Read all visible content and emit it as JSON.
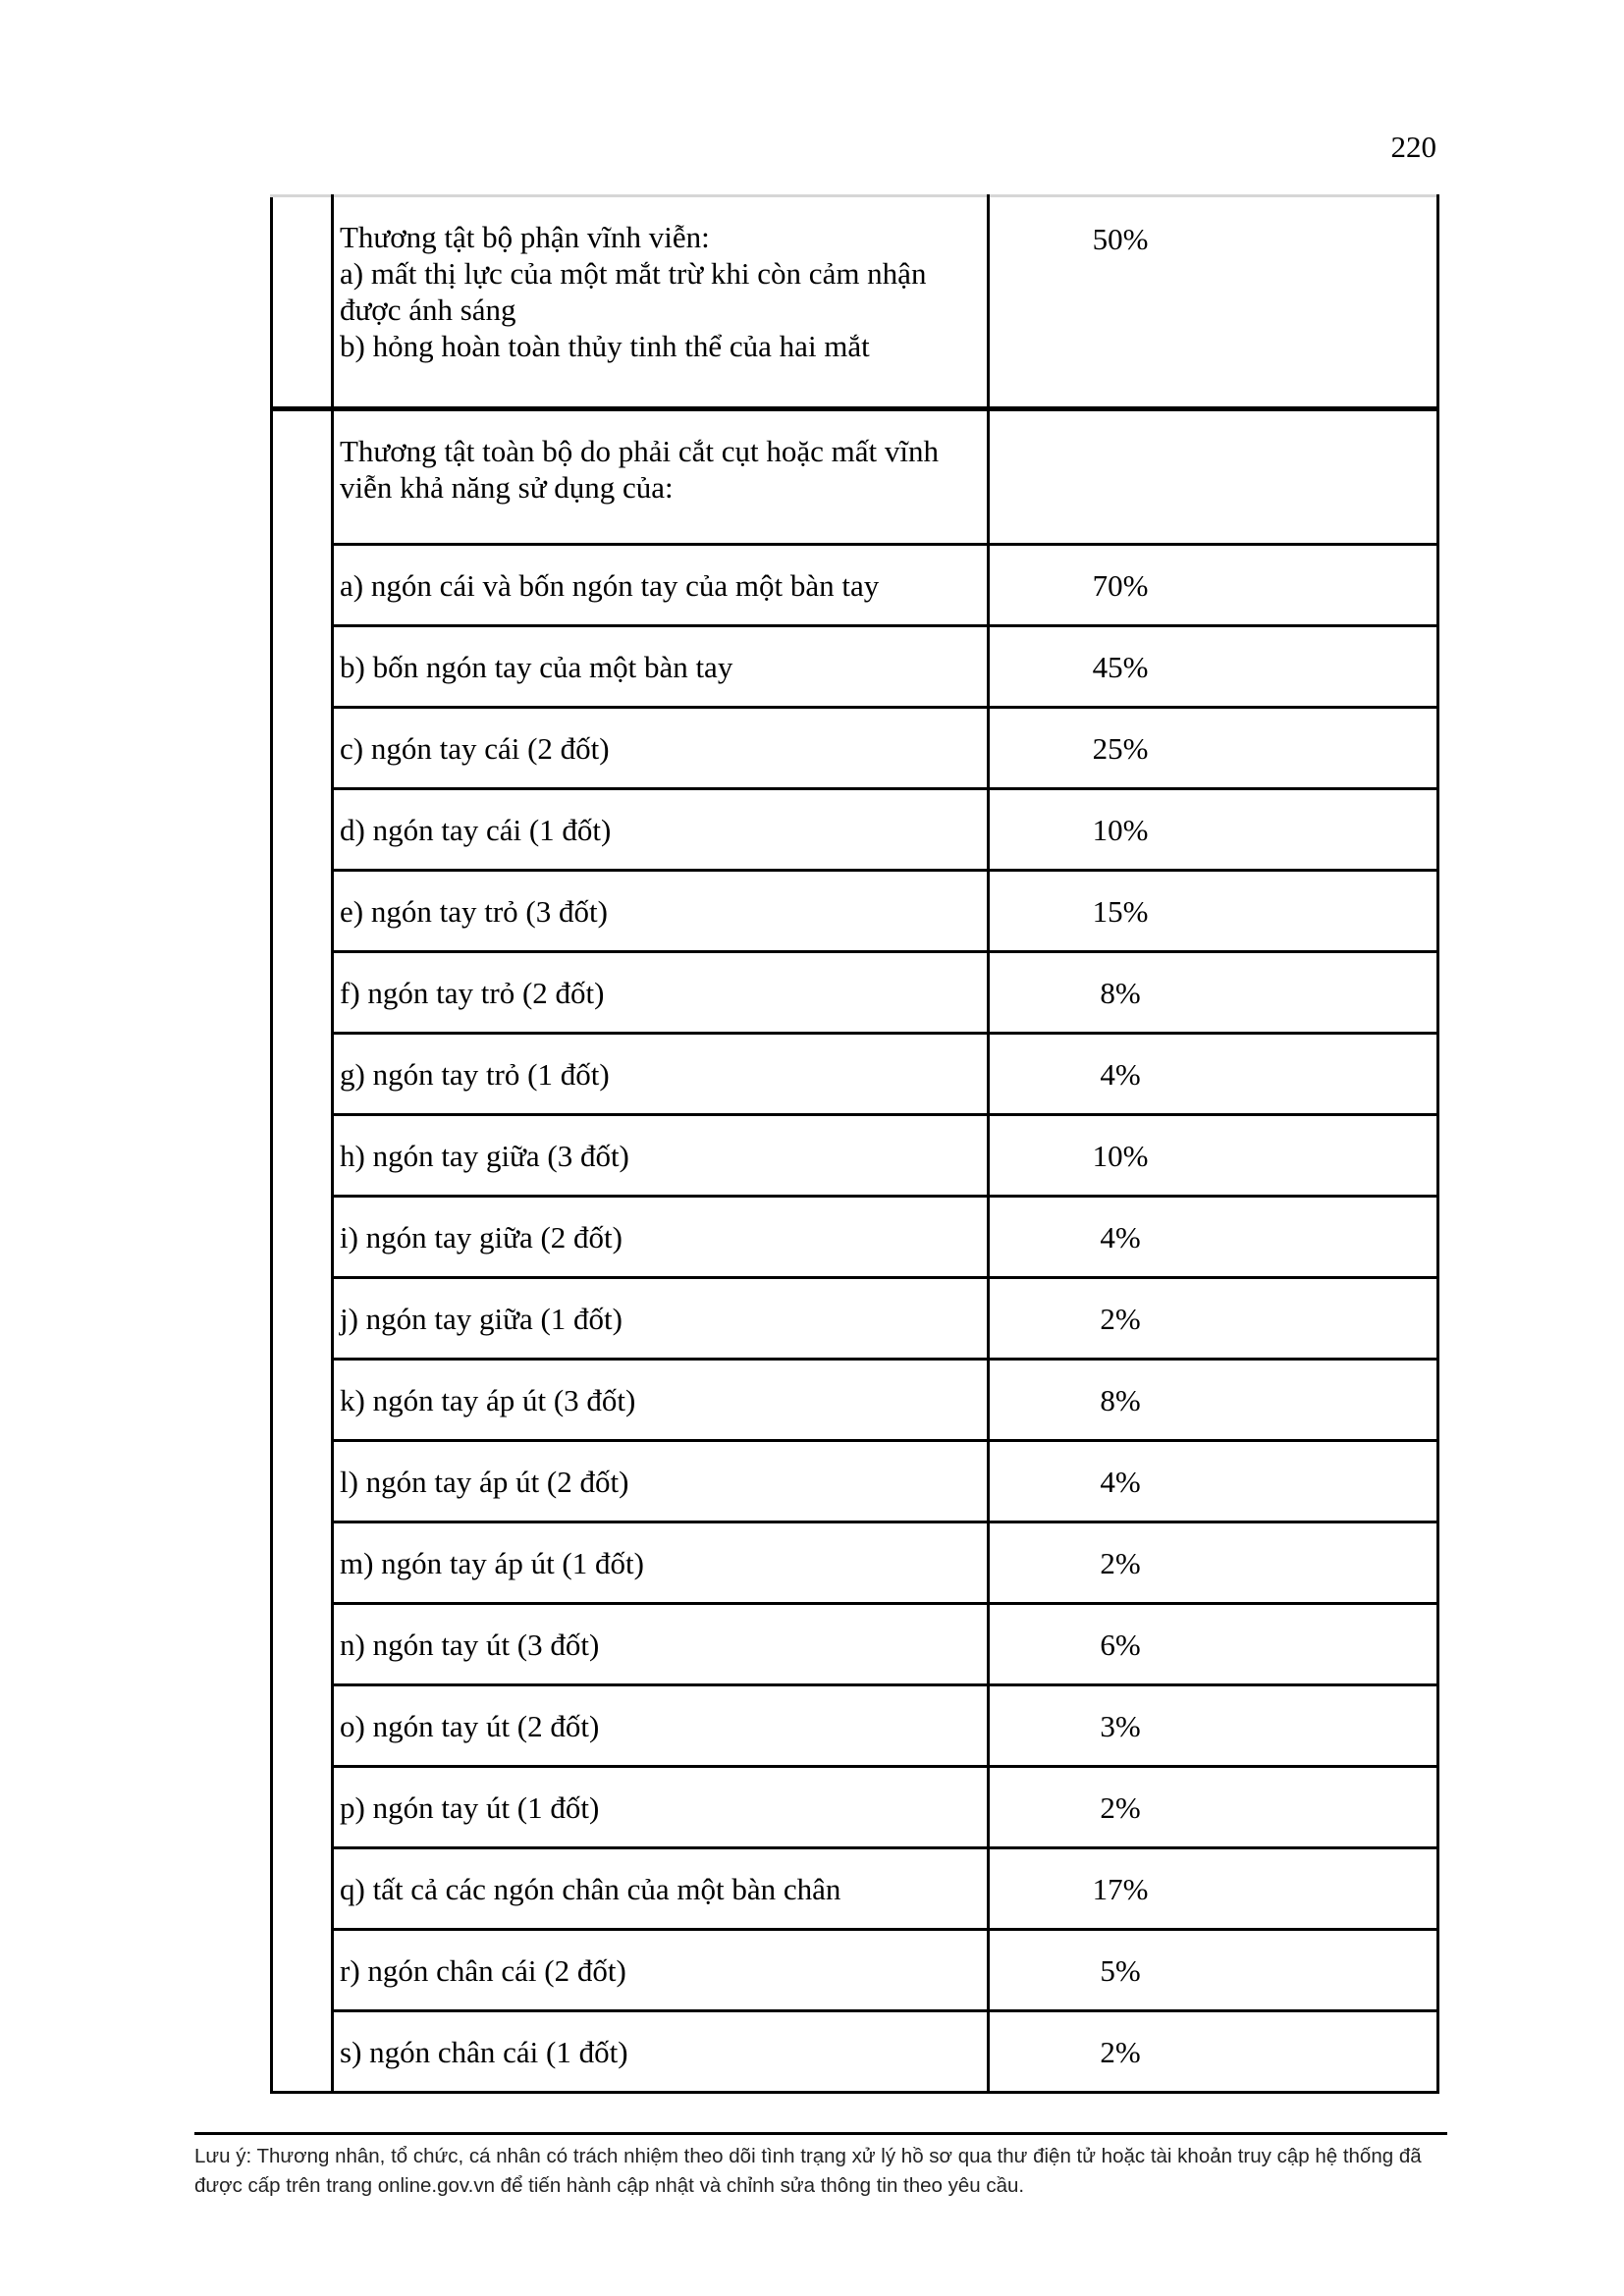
{
  "page": {
    "number": "220"
  },
  "colors": {
    "border": "#000000",
    "partial_top_border": "#d6d6d6",
    "text": "#000000",
    "footer_text": "#222222",
    "background": "#ffffff"
  },
  "table": {
    "partial_row": {
      "description_lines": [
        "Thương tật bộ phận vĩnh viễn:",
        "a) mất thị lực của một mắt trừ khi còn cảm nhận được ánh sáng",
        "b) hỏng hoàn toàn thủy tinh thể của hai mắt"
      ],
      "percent": "50%"
    },
    "section_header": "Thương tật toàn bộ do phải cắt cụt hoặc mất vĩnh viễn khả năng sử dụng của:",
    "rows": [
      {
        "label": "a) ngón cái và bốn ngón tay của một bàn tay",
        "percent": "70%"
      },
      {
        "label": "b) bốn ngón tay của một bàn tay",
        "percent": "45%"
      },
      {
        "label": "c) ngón tay cái (2 đốt)",
        "percent": "25%"
      },
      {
        "label": "d) ngón tay cái (1 đốt)",
        "percent": "10%"
      },
      {
        "label": "e) ngón tay trỏ (3 đốt)",
        "percent": "15%"
      },
      {
        "label": "f) ngón tay trỏ (2 đốt)",
        "percent": "8%"
      },
      {
        "label": "g) ngón tay trỏ (1 đốt)",
        "percent": "4%"
      },
      {
        "label": "h) ngón tay giữa (3 đốt)",
        "percent": "10%"
      },
      {
        "label": "i) ngón tay giữa (2 đốt)",
        "percent": "4%"
      },
      {
        "label": "j) ngón tay giữa (1 đốt)",
        "percent": "2%"
      },
      {
        "label": "k) ngón tay áp út (3 đốt)",
        "percent": "8%"
      },
      {
        "label": "l) ngón tay áp út (2 đốt)",
        "percent": "4%"
      },
      {
        "label": "m) ngón tay áp út (1 đốt)",
        "percent": "2%"
      },
      {
        "label": "n) ngón tay út (3 đốt)",
        "percent": "6%"
      },
      {
        "label": "o) ngón tay út (2 đốt)",
        "percent": "3%"
      },
      {
        "label": "p) ngón tay út (1 đốt)",
        "percent": "2%"
      },
      {
        "label": "q) tất cả các ngón chân của một bàn chân",
        "percent": "17%"
      },
      {
        "label": "r) ngón chân cái (2 đốt)",
        "percent": "5%"
      },
      {
        "label": "s) ngón chân cái (1 đốt)",
        "percent": "2%"
      }
    ]
  },
  "footer": {
    "note": "Lưu ý: Thương nhân, tổ chức, cá nhân có trách nhiệm theo dõi tình trạng xử lý hồ sơ qua thư điện tử hoặc tài khoản truy cập hệ thống đã được cấp trên trang online.gov.vn để tiến hành cập nhật và chỉnh sửa thông tin theo yêu cầu."
  }
}
